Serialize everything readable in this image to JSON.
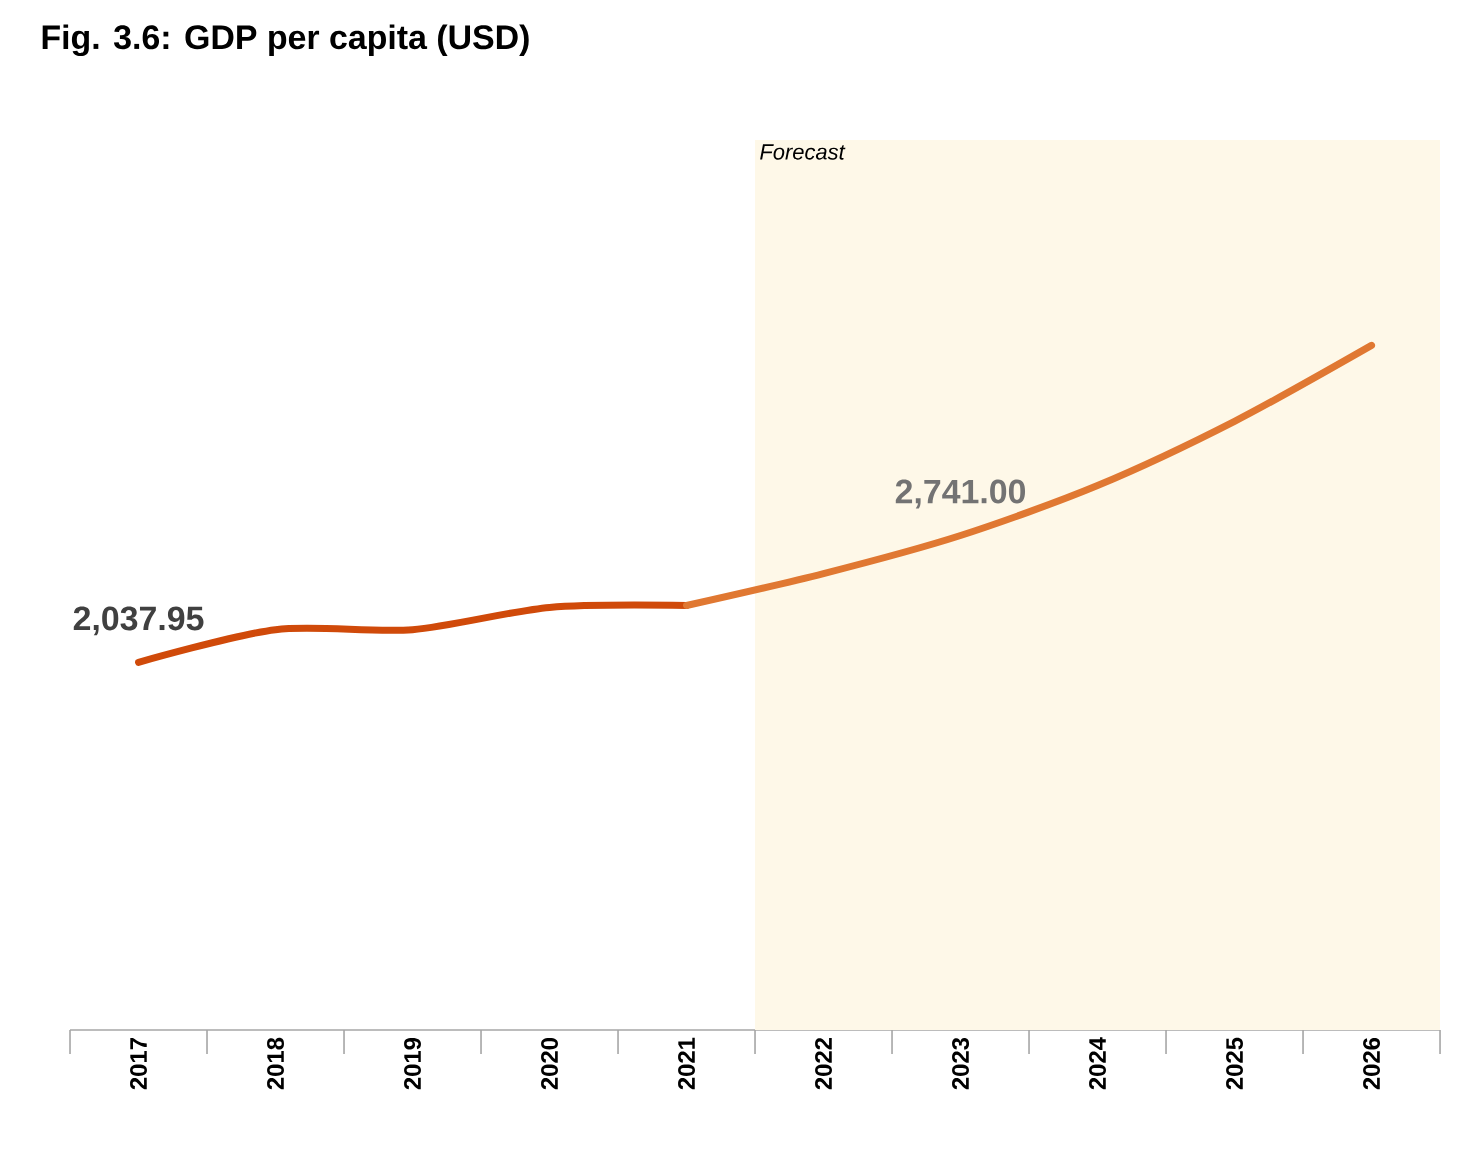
{
  "chart_data": {
    "type": "line",
    "title": "Fig. 3.6: GDP per capita (USD)",
    "categories": [
      "2017",
      "2018",
      "2019",
      "2020",
      "2021",
      "2022",
      "2023",
      "2024",
      "2025",
      "2026"
    ],
    "series": [
      {
        "color": "#d04a0a",
        "values": [
          2037.95,
          2219,
          2219,
          2342,
          2353,
          null,
          null,
          null,
          null,
          null
        ],
        "value_labels": [
          "2,037.95",
          null,
          null,
          null,
          null,
          null,
          null,
          null,
          null,
          null
        ]
      },
      {
        "color": "#e07832",
        "values": [
          null,
          null,
          null,
          null,
          2353,
          2530,
          2741.0,
          3018,
          3374,
          3795
        ],
        "value_labels": [
          null,
          null,
          null,
          null,
          null,
          null,
          "2,741.00",
          null,
          null,
          null
        ]
      }
    ],
    "bands": [
      {
        "axis": "x",
        "from": "2022",
        "to": "2026",
        "label": "Forecast",
        "color": "#fef8e8"
      }
    ],
    "tick_labels": "x"
  }
}
